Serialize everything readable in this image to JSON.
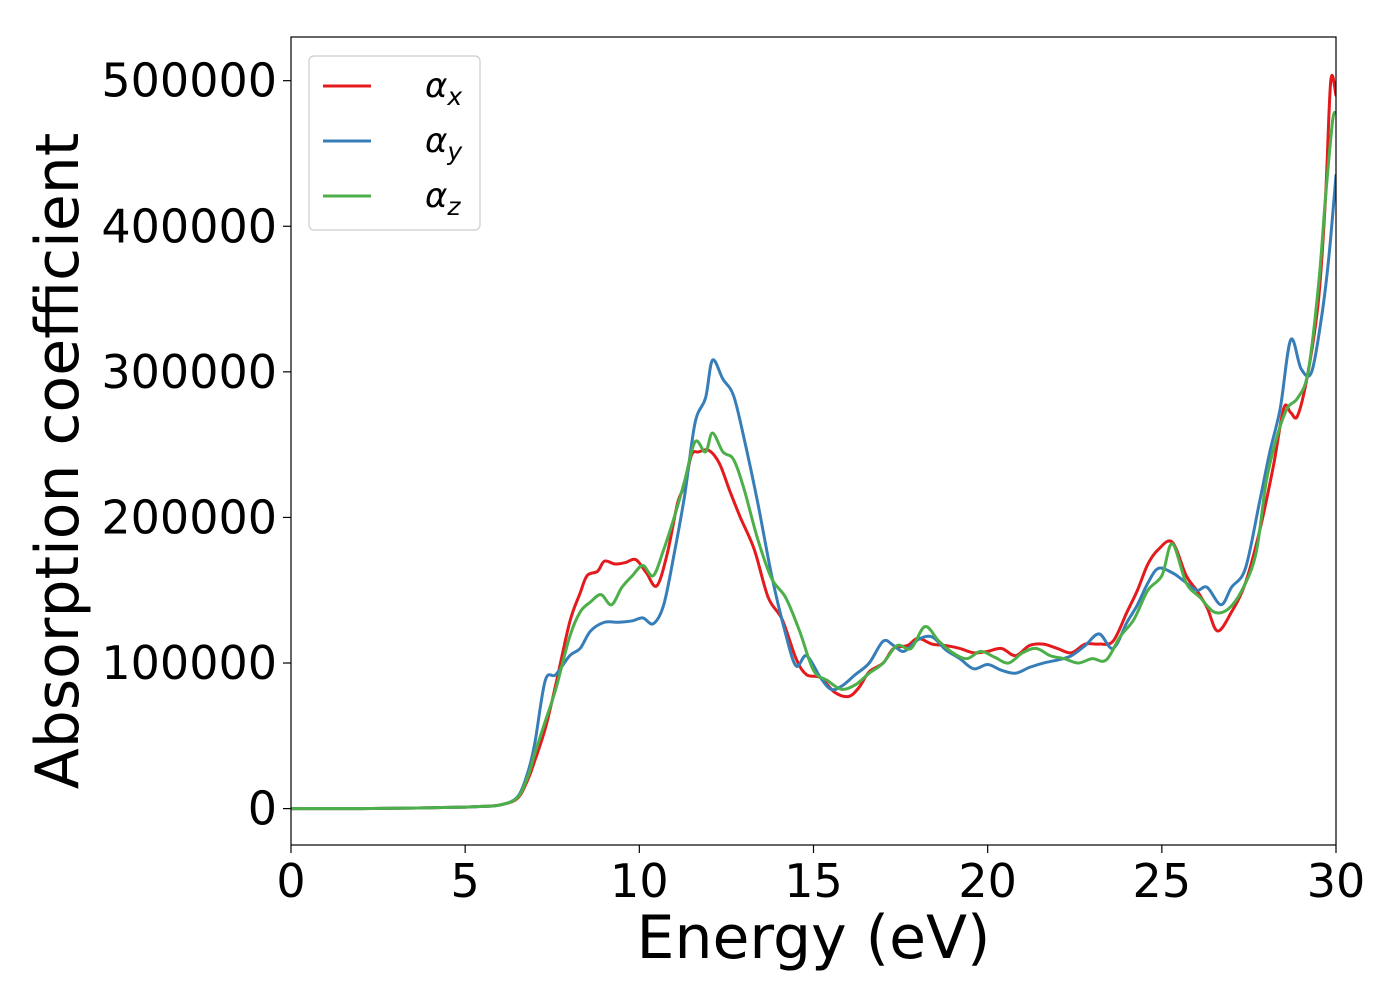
{
  "chart_data": {
    "type": "line",
    "title": "",
    "xlabel": "Energy (eV)",
    "ylabel": "Absorption coefficient",
    "xlim": [
      0,
      30
    ],
    "ylim": [
      -25000,
      530000
    ],
    "xticks": [
      0,
      5,
      10,
      15,
      20,
      25,
      30
    ],
    "xtick_labels": [
      "0",
      "5",
      "10",
      "15",
      "20",
      "25",
      "30"
    ],
    "yticks": [
      0,
      100000,
      200000,
      300000,
      400000,
      500000
    ],
    "ytick_labels": [
      "0",
      "100000",
      "200000",
      "300000",
      "400000",
      "500000"
    ],
    "grid": false,
    "legend_position": "top-left",
    "series": [
      {
        "name": "αx",
        "legend_base": "α",
        "legend_sub": "x",
        "color": "#e41a1c",
        "points": [
          [
            0,
            0
          ],
          [
            1,
            0
          ],
          [
            2,
            0
          ],
          [
            3,
            200
          ],
          [
            4,
            600
          ],
          [
            5,
            1000
          ],
          [
            5.5,
            1500
          ],
          [
            6,
            2500
          ],
          [
            6.5,
            7000
          ],
          [
            6.8,
            20000
          ],
          [
            7,
            33000
          ],
          [
            7.3,
            55000
          ],
          [
            7.6,
            85000
          ],
          [
            8,
            128000
          ],
          [
            8.3,
            148000
          ],
          [
            8.5,
            160000
          ],
          [
            8.8,
            163000
          ],
          [
            9,
            170000
          ],
          [
            9.3,
            168000
          ],
          [
            9.6,
            169000
          ],
          [
            9.9,
            171000
          ],
          [
            10.2,
            162000
          ],
          [
            10.5,
            153000
          ],
          [
            10.8,
            175000
          ],
          [
            11.1,
            210000
          ],
          [
            11.3,
            222000
          ],
          [
            11.5,
            243000
          ],
          [
            11.7,
            245000
          ],
          [
            12,
            246000
          ],
          [
            12.3,
            237000
          ],
          [
            12.6,
            218000
          ],
          [
            12.9,
            200000
          ],
          [
            13.3,
            178000
          ],
          [
            13.7,
            145000
          ],
          [
            14.1,
            130000
          ],
          [
            14.5,
            103000
          ],
          [
            14.8,
            92000
          ],
          [
            15.2,
            90000
          ],
          [
            15.6,
            80000
          ],
          [
            16,
            77000
          ],
          [
            16.3,
            83000
          ],
          [
            16.6,
            94000
          ],
          [
            17,
            100000
          ],
          [
            17.3,
            110000
          ],
          [
            17.7,
            112000
          ],
          [
            18,
            117000
          ],
          [
            18.4,
            113000
          ],
          [
            18.8,
            112000
          ],
          [
            19.2,
            110000
          ],
          [
            19.6,
            107000
          ],
          [
            20,
            108000
          ],
          [
            20.4,
            110000
          ],
          [
            20.8,
            105000
          ],
          [
            21.2,
            112000
          ],
          [
            21.6,
            113000
          ],
          [
            22,
            110000
          ],
          [
            22.4,
            107000
          ],
          [
            22.8,
            113000
          ],
          [
            23.2,
            113000
          ],
          [
            23.6,
            115000
          ],
          [
            24,
            135000
          ],
          [
            24.3,
            150000
          ],
          [
            24.6,
            168000
          ],
          [
            24.9,
            178000
          ],
          [
            25.3,
            183000
          ],
          [
            25.7,
            160000
          ],
          [
            26,
            150000
          ],
          [
            26.3,
            138000
          ],
          [
            26.6,
            122000
          ],
          [
            27,
            135000
          ],
          [
            27.4,
            155000
          ],
          [
            27.8,
            190000
          ],
          [
            28.2,
            235000
          ],
          [
            28.5,
            275000
          ],
          [
            28.7,
            272000
          ],
          [
            28.9,
            270000
          ],
          [
            29.2,
            300000
          ],
          [
            29.5,
            350000
          ],
          [
            29.7,
            420000
          ],
          [
            29.85,
            500000
          ],
          [
            30,
            490000
          ]
        ]
      },
      {
        "name": "αy",
        "legend_base": "α",
        "legend_sub": "y",
        "color": "#377eb8",
        "points": [
          [
            0,
            0
          ],
          [
            1,
            0
          ],
          [
            2,
            0
          ],
          [
            3,
            200
          ],
          [
            4,
            600
          ],
          [
            5,
            1000
          ],
          [
            5.5,
            1500
          ],
          [
            6,
            2500
          ],
          [
            6.5,
            8000
          ],
          [
            6.8,
            25000
          ],
          [
            7,
            45000
          ],
          [
            7.3,
            88000
          ],
          [
            7.6,
            92000
          ],
          [
            8,
            105000
          ],
          [
            8.3,
            110000
          ],
          [
            8.6,
            122000
          ],
          [
            9,
            128000
          ],
          [
            9.4,
            128000
          ],
          [
            9.8,
            129000
          ],
          [
            10.1,
            131000
          ],
          [
            10.4,
            127000
          ],
          [
            10.7,
            140000
          ],
          [
            11,
            175000
          ],
          [
            11.3,
            215000
          ],
          [
            11.6,
            265000
          ],
          [
            11.9,
            282000
          ],
          [
            12.1,
            308000
          ],
          [
            12.4,
            295000
          ],
          [
            12.7,
            284000
          ],
          [
            13,
            255000
          ],
          [
            13.4,
            210000
          ],
          [
            13.8,
            160000
          ],
          [
            14.2,
            120000
          ],
          [
            14.5,
            98000
          ],
          [
            14.8,
            105000
          ],
          [
            15.2,
            90000
          ],
          [
            15.5,
            82000
          ],
          [
            15.8,
            84000
          ],
          [
            16.2,
            92000
          ],
          [
            16.6,
            100000
          ],
          [
            17,
            115000
          ],
          [
            17.3,
            112000
          ],
          [
            17.6,
            108000
          ],
          [
            18,
            116000
          ],
          [
            18.4,
            118000
          ],
          [
            18.8,
            109000
          ],
          [
            19.2,
            103000
          ],
          [
            19.6,
            96000
          ],
          [
            20,
            99000
          ],
          [
            20.4,
            95000
          ],
          [
            20.8,
            93000
          ],
          [
            21.2,
            97000
          ],
          [
            21.6,
            100000
          ],
          [
            22,
            102000
          ],
          [
            22.4,
            105000
          ],
          [
            22.8,
            112000
          ],
          [
            23.2,
            120000
          ],
          [
            23.6,
            110000
          ],
          [
            24,
            128000
          ],
          [
            24.3,
            140000
          ],
          [
            24.6,
            155000
          ],
          [
            24.9,
            165000
          ],
          [
            25.3,
            162000
          ],
          [
            25.6,
            157000
          ],
          [
            26,
            150000
          ],
          [
            26.3,
            152000
          ],
          [
            26.7,
            140000
          ],
          [
            27,
            152000
          ],
          [
            27.4,
            165000
          ],
          [
            27.8,
            210000
          ],
          [
            28.1,
            245000
          ],
          [
            28.4,
            275000
          ],
          [
            28.7,
            322000
          ],
          [
            29,
            302000
          ],
          [
            29.3,
            300000
          ],
          [
            29.6,
            340000
          ],
          [
            29.8,
            380000
          ],
          [
            30,
            435000
          ]
        ]
      },
      {
        "name": "αz",
        "legend_base": "α",
        "legend_sub": "z",
        "color": "#4daf4a",
        "points": [
          [
            0,
            0
          ],
          [
            1,
            0
          ],
          [
            2,
            0
          ],
          [
            3,
            200
          ],
          [
            4,
            600
          ],
          [
            5,
            1000
          ],
          [
            5.5,
            1500
          ],
          [
            6,
            2500
          ],
          [
            6.5,
            7500
          ],
          [
            6.8,
            22000
          ],
          [
            7,
            38000
          ],
          [
            7.3,
            60000
          ],
          [
            7.6,
            82000
          ],
          [
            8,
            118000
          ],
          [
            8.3,
            135000
          ],
          [
            8.6,
            142000
          ],
          [
            8.9,
            147000
          ],
          [
            9.2,
            140000
          ],
          [
            9.5,
            152000
          ],
          [
            9.8,
            160000
          ],
          [
            10.1,
            167000
          ],
          [
            10.4,
            160000
          ],
          [
            10.7,
            178000
          ],
          [
            11,
            200000
          ],
          [
            11.3,
            225000
          ],
          [
            11.6,
            252000
          ],
          [
            11.9,
            245000
          ],
          [
            12.1,
            258000
          ],
          [
            12.4,
            245000
          ],
          [
            12.7,
            240000
          ],
          [
            13,
            220000
          ],
          [
            13.4,
            185000
          ],
          [
            13.8,
            158000
          ],
          [
            14.2,
            145000
          ],
          [
            14.6,
            122000
          ],
          [
            15,
            95000
          ],
          [
            15.4,
            88000
          ],
          [
            15.8,
            82000
          ],
          [
            16.2,
            85000
          ],
          [
            16.6,
            93000
          ],
          [
            17,
            100000
          ],
          [
            17.4,
            112000
          ],
          [
            17.8,
            110000
          ],
          [
            18.2,
            125000
          ],
          [
            18.6,
            115000
          ],
          [
            19,
            107000
          ],
          [
            19.4,
            103000
          ],
          [
            19.8,
            108000
          ],
          [
            20.2,
            104000
          ],
          [
            20.6,
            100000
          ],
          [
            21,
            107000
          ],
          [
            21.4,
            110000
          ],
          [
            21.8,
            105000
          ],
          [
            22.2,
            103000
          ],
          [
            22.6,
            100000
          ],
          [
            23,
            103000
          ],
          [
            23.4,
            102000
          ],
          [
            23.8,
            118000
          ],
          [
            24.2,
            130000
          ],
          [
            24.6,
            150000
          ],
          [
            25,
            160000
          ],
          [
            25.3,
            182000
          ],
          [
            25.7,
            155000
          ],
          [
            26.1,
            145000
          ],
          [
            26.5,
            135000
          ],
          [
            26.9,
            137000
          ],
          [
            27.3,
            150000
          ],
          [
            27.7,
            175000
          ],
          [
            28,
            225000
          ],
          [
            28.3,
            255000
          ],
          [
            28.6,
            275000
          ],
          [
            28.9,
            282000
          ],
          [
            29.2,
            300000
          ],
          [
            29.5,
            360000
          ],
          [
            29.7,
            420000
          ],
          [
            29.9,
            472000
          ],
          [
            30,
            478000
          ]
        ]
      }
    ]
  }
}
